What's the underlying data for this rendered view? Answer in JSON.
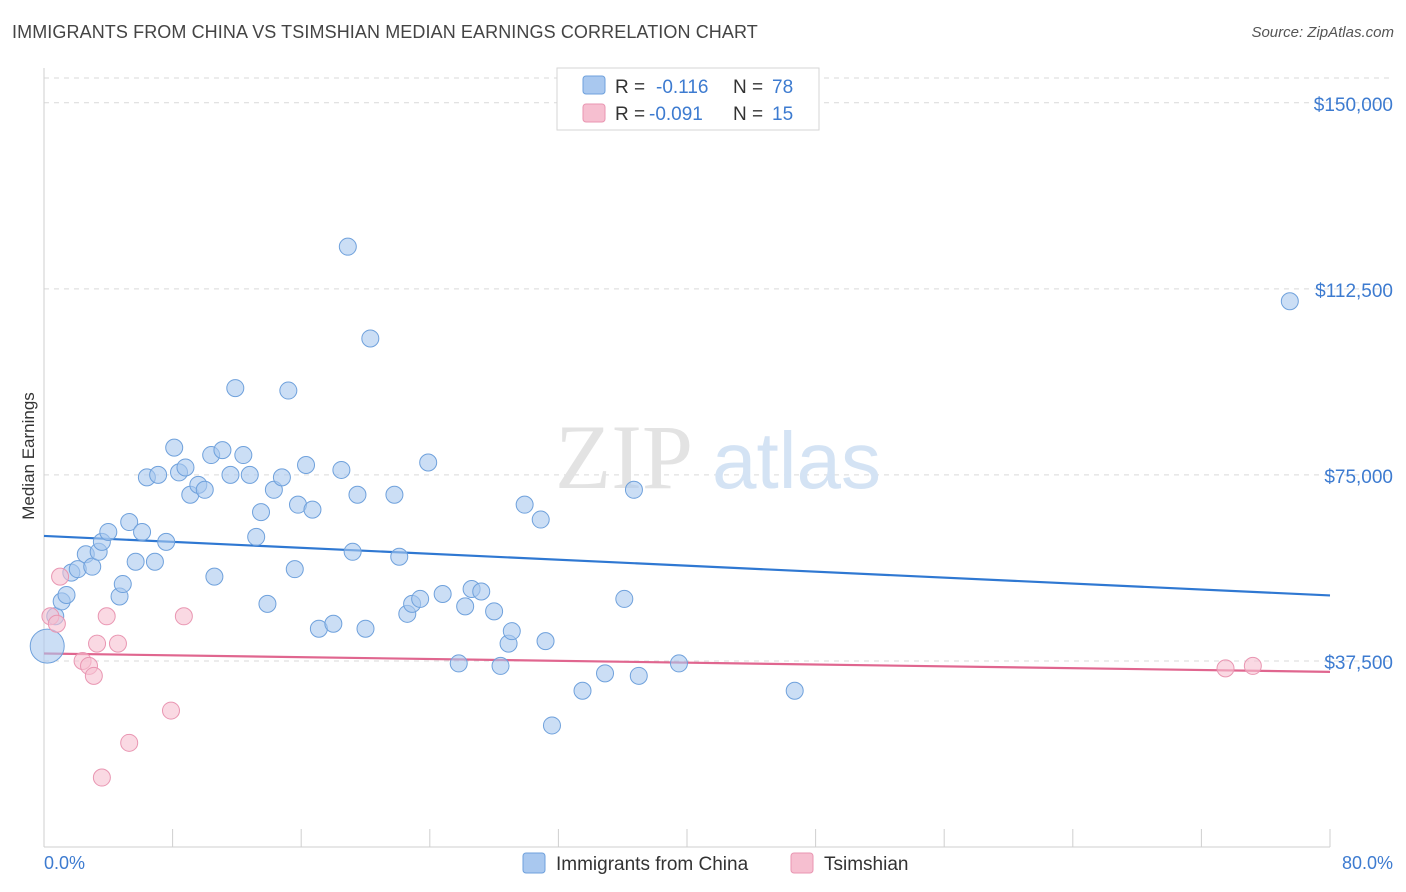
{
  "title": "IMMIGRANTS FROM CHINA VS TSIMSHIAN MEDIAN EARNINGS CORRELATION CHART",
  "source": "Source: ZipAtlas.com",
  "watermark": {
    "zip": "ZIP",
    "atlas": "atlas"
  },
  "colors": {
    "blue_fill": "#a9c8ef",
    "blue_stroke": "#6fa1dc",
    "blue_line": "#2f78d2",
    "pink_fill": "#f6bfd0",
    "pink_stroke": "#e996b2",
    "pink_line": "#e0668f",
    "tick_text": "#3d7bd0",
    "grid": "#d9d9d9"
  },
  "legend": {
    "rows": [
      {
        "r_label": "R =",
        "r_value": "-0.116",
        "n_label": "N =",
        "n_value": "78"
      },
      {
        "r_label": "R =",
        "r_value": "-0.091",
        "n_label": "N =",
        "n_value": "15"
      }
    ]
  },
  "chart_data": {
    "type": "scatter",
    "xlabel": "",
    "ylabel": "Median Earnings",
    "xlim": [
      0,
      80
    ],
    "ylim": [
      0,
      155000
    ],
    "x_tick_labels": [
      {
        "value": 0,
        "label": "0.0%"
      },
      {
        "value": 80,
        "label": "80.0%"
      }
    ],
    "y_tick_labels": [
      {
        "value": 37500,
        "label": "$37,500"
      },
      {
        "value": 75000,
        "label": "$75,000"
      },
      {
        "value": 112500,
        "label": "$112,500"
      },
      {
        "value": 150000,
        "label": "$150,000"
      }
    ],
    "legend_position": "top-center",
    "grid": true,
    "series": [
      {
        "name": "Immigrants from China",
        "trend": {
          "x": [
            0,
            80
          ],
          "y": [
            62700,
            50700
          ]
        },
        "points": [
          [
            0.2,
            40500
          ],
          [
            0.7,
            46500
          ],
          [
            1.1,
            49500
          ],
          [
            1.4,
            50800
          ],
          [
            1.7,
            55300
          ],
          [
            2.1,
            56000
          ],
          [
            2.6,
            59000
          ],
          [
            3.0,
            56500
          ],
          [
            3.4,
            59500
          ],
          [
            3.6,
            61500
          ],
          [
            4.0,
            63500
          ],
          [
            4.7,
            50500
          ],
          [
            4.9,
            53000
          ],
          [
            5.3,
            65500
          ],
          [
            5.7,
            57500
          ],
          [
            6.1,
            63500
          ],
          [
            6.4,
            74500
          ],
          [
            6.9,
            57500
          ],
          [
            7.1,
            75000
          ],
          [
            7.6,
            61500
          ],
          [
            8.1,
            80500
          ],
          [
            8.4,
            75500
          ],
          [
            8.8,
            76500
          ],
          [
            9.1,
            71000
          ],
          [
            9.6,
            73000
          ],
          [
            10.0,
            72000
          ],
          [
            10.4,
            79000
          ],
          [
            10.6,
            54500
          ],
          [
            11.1,
            80000
          ],
          [
            11.6,
            75000
          ],
          [
            11.9,
            92500
          ],
          [
            12.4,
            79000
          ],
          [
            12.8,
            75000
          ],
          [
            13.2,
            62500
          ],
          [
            13.5,
            67500
          ],
          [
            13.9,
            49000
          ],
          [
            14.3,
            72000
          ],
          [
            14.8,
            74500
          ],
          [
            15.2,
            92000
          ],
          [
            15.6,
            56000
          ],
          [
            15.8,
            69000
          ],
          [
            16.3,
            77000
          ],
          [
            16.7,
            68000
          ],
          [
            17.1,
            44000
          ],
          [
            18.0,
            45000
          ],
          [
            18.5,
            76000
          ],
          [
            18.9,
            121000
          ],
          [
            19.2,
            59500
          ],
          [
            19.5,
            71000
          ],
          [
            20.0,
            44000
          ],
          [
            20.3,
            102500
          ],
          [
            21.8,
            71000
          ],
          [
            22.1,
            58500
          ],
          [
            22.6,
            47000
          ],
          [
            22.9,
            49000
          ],
          [
            23.4,
            50000
          ],
          [
            23.9,
            77500
          ],
          [
            24.8,
            51000
          ],
          [
            25.8,
            37000
          ],
          [
            26.2,
            48500
          ],
          [
            26.6,
            52000
          ],
          [
            27.2,
            51500
          ],
          [
            28.0,
            47500
          ],
          [
            28.4,
            36500
          ],
          [
            28.9,
            41000
          ],
          [
            29.1,
            43500
          ],
          [
            29.9,
            69000
          ],
          [
            30.9,
            66000
          ],
          [
            31.2,
            41500
          ],
          [
            31.6,
            24500
          ],
          [
            33.5,
            31500
          ],
          [
            34.9,
            35000
          ],
          [
            36.1,
            50000
          ],
          [
            36.7,
            72000
          ],
          [
            37.0,
            34500
          ],
          [
            39.5,
            37000
          ],
          [
            46.7,
            31500
          ],
          [
            77.5,
            110000
          ]
        ]
      },
      {
        "name": "Tsimshian",
        "trend": {
          "x": [
            0,
            80
          ],
          "y": [
            39000,
            35300
          ]
        },
        "points": [
          [
            0.4,
            46500
          ],
          [
            0.8,
            45000
          ],
          [
            1.0,
            54500
          ],
          [
            2.4,
            37500
          ],
          [
            2.8,
            36500
          ],
          [
            3.1,
            34500
          ],
          [
            3.3,
            41000
          ],
          [
            3.6,
            14000
          ],
          [
            3.9,
            46500
          ],
          [
            4.6,
            41000
          ],
          [
            5.3,
            21000
          ],
          [
            7.9,
            27500
          ],
          [
            8.7,
            46500
          ],
          [
            73.5,
            36000
          ],
          [
            75.2,
            36500
          ]
        ]
      }
    ]
  }
}
